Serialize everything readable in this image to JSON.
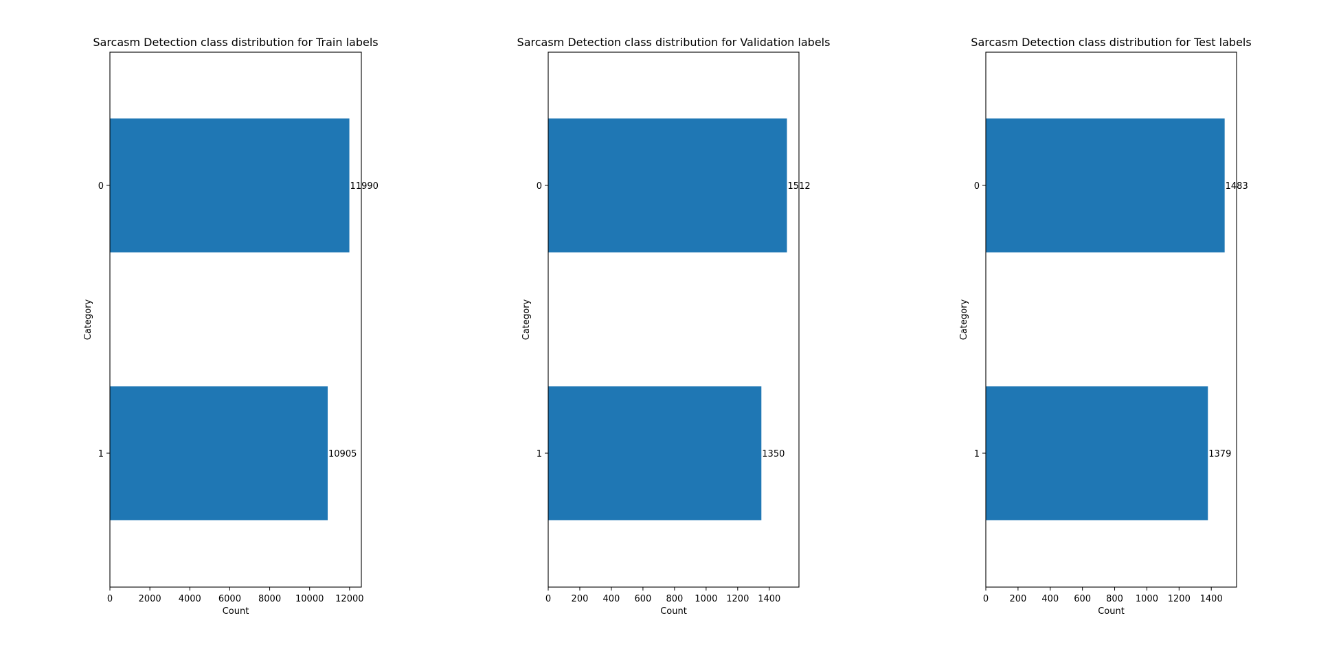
{
  "chart_data": [
    {
      "type": "bar",
      "orientation": "horizontal",
      "title": "Sarcasm Detection class distribution for Train labels",
      "xlabel": "Count",
      "ylabel": "Category",
      "categories": [
        "0",
        "1"
      ],
      "values": [
        11990,
        10905
      ],
      "xlim": [
        0,
        12590
      ],
      "xticks": [
        0,
        2000,
        4000,
        6000,
        8000,
        10000,
        12000
      ],
      "grid": false,
      "bar_color": "#1f77b4"
    },
    {
      "type": "bar",
      "orientation": "horizontal",
      "title": "Sarcasm Detection class distribution for Validation labels",
      "xlabel": "Count",
      "ylabel": "Category",
      "categories": [
        "0",
        "1"
      ],
      "values": [
        1512,
        1350
      ],
      "xlim": [
        0,
        1588
      ],
      "xticks": [
        0,
        200,
        400,
        600,
        800,
        1000,
        1200,
        1400
      ],
      "grid": false,
      "bar_color": "#1f77b4"
    },
    {
      "type": "bar",
      "orientation": "horizontal",
      "title": "Sarcasm Detection class distribution for Test labels",
      "xlabel": "Count",
      "ylabel": "Category",
      "categories": [
        "0",
        "1"
      ],
      "values": [
        1483,
        1379
      ],
      "xlim": [
        0,
        1557
      ],
      "xticks": [
        0,
        200,
        400,
        600,
        800,
        1000,
        1200,
        1400
      ],
      "grid": false,
      "bar_color": "#1f77b4"
    }
  ]
}
